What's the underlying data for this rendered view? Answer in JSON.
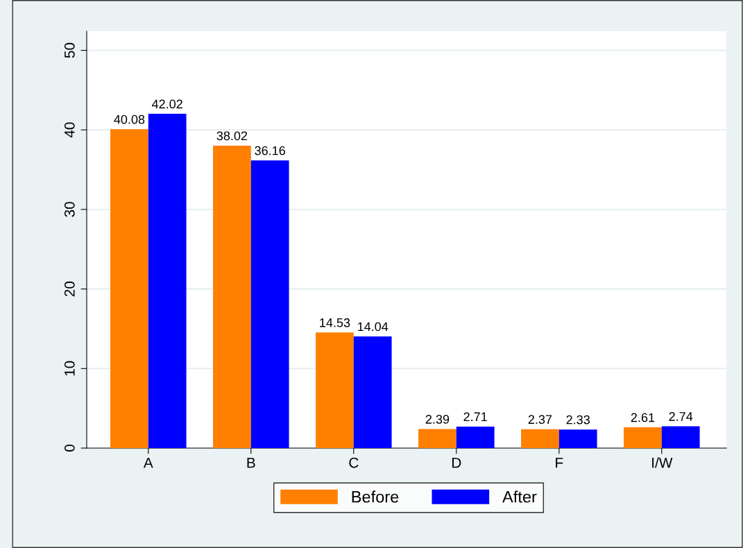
{
  "chart_data": {
    "type": "bar",
    "categories": [
      "A",
      "B",
      "C",
      "D",
      "F",
      "I/W"
    ],
    "series": [
      {
        "name": "Before",
        "color": "#ff8000",
        "values": [
          40.08,
          38.02,
          14.53,
          2.39,
          2.37,
          2.61
        ]
      },
      {
        "name": "After",
        "color": "#0000ff",
        "values": [
          42.02,
          36.16,
          14.04,
          2.71,
          2.33,
          2.74
        ]
      }
    ],
    "ylim": [
      0,
      52.4
    ],
    "yticks": [
      0,
      10,
      20,
      30,
      40,
      50
    ],
    "grid": "y",
    "legend": "bottom",
    "data_labels": true
  }
}
